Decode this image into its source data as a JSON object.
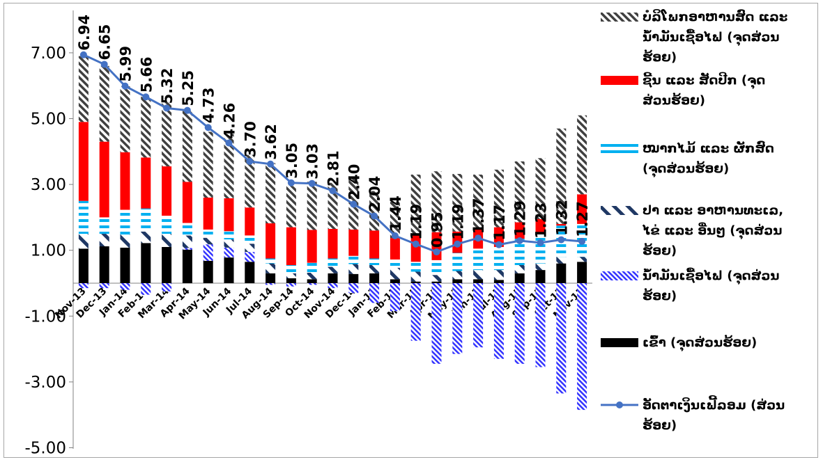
{
  "chart_data": {
    "type": "bar",
    "stacked": true,
    "categories": [
      "Nov-13",
      "Dec-13",
      "Jan-14",
      "Feb-14",
      "Mar-14",
      "Apr-14",
      "May-14",
      "Jun-14",
      "Jul-14",
      "Aug-14",
      "Sep-14",
      "Oct-14",
      "Nov-14",
      "Dec-14",
      "Jan-15",
      "Feb-15",
      "Mar-15",
      "Apr-15",
      "May-15",
      "Jun-15",
      "Jul-15",
      "Aug-15",
      "Sep-15",
      "Oct-15",
      "Nov-15"
    ],
    "ylim": [
      -5.0,
      8.0
    ],
    "yticks": [
      7.0,
      5.0,
      3.0,
      1.0,
      -1.0,
      -3.0,
      -5.0
    ],
    "ytick_labels": [
      "7.00",
      "5.00",
      "3.00",
      "1.00",
      "-1.00",
      "-3.00",
      "-5.00"
    ],
    "series": [
      {
        "name": "ເຂົ້າ (ຈຸດສ່ວນຮ້ອຍ)",
        "kind": "bar",
        "color": "#000000",
        "pattern": "solid",
        "values": [
          1.05,
          1.12,
          1.08,
          1.22,
          1.1,
          1.02,
          0.68,
          0.78,
          0.65,
          0.3,
          0.15,
          0.12,
          0.3,
          0.28,
          0.3,
          0.12,
          0.05,
          0.05,
          0.12,
          0.12,
          0.1,
          0.3,
          0.4,
          0.6,
          0.65
        ]
      },
      {
        "name": "ນ້ຳມັນເຊື້ອໄຟ (ຈຸດສ່ວນຮ້ອຍ)",
        "kind": "bar",
        "color": "#3333ff",
        "pattern": "diagonal",
        "values": [
          -0.15,
          -0.15,
          -0.2,
          -0.35,
          -0.25,
          0.05,
          0.5,
          0.3,
          0.3,
          -0.05,
          -0.1,
          -0.05,
          -0.15,
          -0.3,
          -0.6,
          -0.85,
          -1.75,
          -2.45,
          -2.15,
          -1.95,
          -2.3,
          -2.45,
          -2.55,
          -3.35,
          -3.85
        ]
      },
      {
        "name": "ປາ ແລະ ອາຫານທະເລ, ໄຂ່ ແລະ ອື່ນໆ (ຈຸດສ່ວນຮ້ອຍ)",
        "kind": "bar",
        "color": "#1f3864",
        "pattern": "dash",
        "values": [
          0.45,
          0.38,
          0.4,
          0.35,
          0.4,
          0.38,
          0.2,
          0.25,
          0.25,
          0.3,
          0.15,
          0.2,
          0.2,
          0.3,
          0.25,
          0.35,
          0.3,
          0.2,
          0.25,
          0.28,
          0.3,
          0.25,
          0.2,
          0.2,
          0.15
        ]
      },
      {
        "name": "ໝາກໄມ້ ແລະ ຜັກສົດ (ຈຸດສ່ວນຮ້ອຍ)",
        "kind": "bar",
        "color": "#00b0f0",
        "pattern": "stripe",
        "values": [
          1.0,
          0.5,
          0.75,
          0.7,
          0.55,
          0.38,
          0.25,
          0.25,
          0.25,
          0.15,
          0.25,
          0.3,
          0.25,
          0.25,
          0.2,
          0.25,
          0.3,
          0.45,
          0.55,
          0.65,
          0.7,
          0.8,
          0.95,
          0.95,
          1.0
        ]
      },
      {
        "name": "ຊີ້ນ ແລະ ສັດປີກ (ຈຸດສ່ວນຮ້ອຍ)",
        "kind": "bar",
        "color": "#ff0000",
        "pattern": "solid",
        "values": [
          2.4,
          2.3,
          1.75,
          1.55,
          1.5,
          1.25,
          0.97,
          1.0,
          0.85,
          1.07,
          1.15,
          1.0,
          0.9,
          0.8,
          0.85,
          0.65,
          0.85,
          0.85,
          0.65,
          0.6,
          0.6,
          0.5,
          0.4,
          0.05,
          0.9
        ]
      },
      {
        "name": "ບໍລິໂພກອາຫານສົດ ແລະ ນ້ຳມັນເຊື້ອໄຟ (ຈຸດສ່ວນຮ້ອຍ)",
        "kind": "bar",
        "color": "#404040",
        "pattern": "hatch",
        "values": [
          2.0,
          2.3,
          2.0,
          1.85,
          1.95,
          2.15,
          2.0,
          1.95,
          1.6,
          1.83,
          1.25,
          1.46,
          1.4,
          1.6,
          1.2,
          1.1,
          1.8,
          1.85,
          1.75,
          1.65,
          1.75,
          1.85,
          1.85,
          2.9,
          2.4
        ]
      },
      {
        "name": "ອັດຕາເງິນເຟີ້ລອມ (ສ່ວນຮ້ອຍ)",
        "kind": "line",
        "color": "#4472c4",
        "values": [
          6.94,
          6.65,
          5.99,
          5.66,
          5.32,
          5.25,
          4.73,
          4.26,
          3.7,
          3.62,
          3.05,
          3.03,
          2.81,
          2.4,
          2.04,
          1.44,
          1.19,
          0.95,
          1.19,
          1.37,
          1.17,
          1.29,
          1.23,
          1.32,
          1.27
        ]
      }
    ],
    "data_labels": [
      "6.94",
      "6.65",
      "5.99",
      "5.66",
      "5.32",
      "5.25",
      "4.73",
      "4.26",
      "3.70",
      "3.62",
      "3.05",
      "3.03",
      "2.81",
      "2.40",
      "2.04",
      "1.44",
      "1.19",
      "0.95",
      "1.19",
      "1.37",
      "1.17",
      "1.29",
      "1.23",
      "1.32",
      "1.27"
    ],
    "legend_position": "right",
    "legend_lines": [
      [
        "ບໍລິໂພກອາຫານສົດ ແລະ",
        "ນ້ຳມັນເຊື້ອໄຟ (ຈຸດສ່ວນ",
        "ຮ້ອຍ)"
      ],
      [
        "ຊີ້ນ ແລະ ສັດປີກ (ຈຸດ",
        "ສ່ວນຮ້ອຍ)"
      ],
      [
        "ໝາກໄມ້ ແລະ ຜັກສົດ",
        "(ຈຸດສ່ວນຮ້ອຍ)"
      ],
      [
        "ປາ ແລະ ອາຫານທະເລ,",
        "ໄຂ່ ແລະ ອື່ນໆ (ຈຸດສ່ວນ",
        "ຮ້ອຍ)"
      ],
      [
        "ນ້ຳມັນເຊື້ອໄຟ (ຈຸດສ່ວນ",
        "ຮ້ອຍ)"
      ],
      [
        "ເຂົ້າ (ຈຸດສ່ວນຮ້ອຍ)"
      ],
      [
        "ອັດຕາເງິນເຟີ້ລອມ (ສ່ວນ",
        "ຮ້ອຍ)"
      ]
    ],
    "grid": false
  }
}
